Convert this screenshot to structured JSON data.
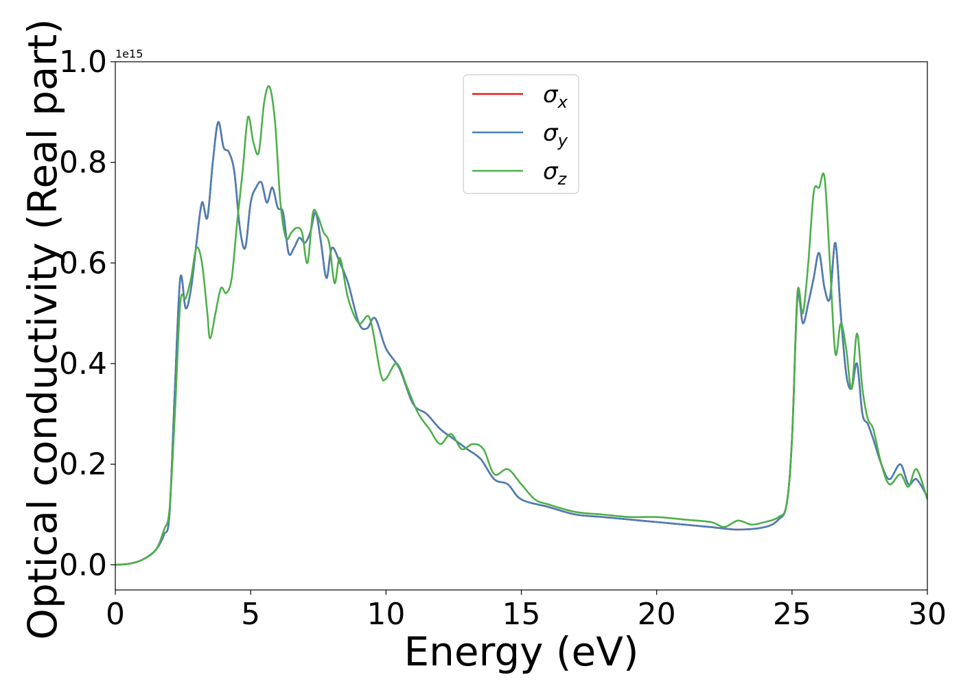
{
  "chart_data": {
    "type": "line",
    "title": "",
    "xlabel": "Energy (eV)",
    "ylabel": "Optical conductivity (Real part)",
    "y_offset_label": "1e15",
    "xlim": [
      0,
      30
    ],
    "ylim": [
      -0.05,
      1.0
    ],
    "xticks": [
      0,
      5,
      10,
      15,
      20,
      25,
      30
    ],
    "yticks": [
      0.0,
      0.2,
      0.4,
      0.6,
      0.8,
      1.0
    ],
    "xtick_labels": [
      "0",
      "5",
      "10",
      "15",
      "20",
      "25",
      "30"
    ],
    "ytick_labels": [
      "0.0",
      "0.2",
      "0.4",
      "0.6",
      "0.8",
      "1.0"
    ],
    "grid": false,
    "legend_position": "top-center",
    "series": [
      {
        "name": "σx",
        "symbol": "σ",
        "subscript": "x",
        "color": "#e41a1c",
        "x": [
          0,
          0.5,
          1.0,
          1.5,
          1.8,
          2.0,
          2.2,
          2.4,
          2.6,
          2.8,
          3.0,
          3.2,
          3.4,
          3.6,
          3.8,
          4.0,
          4.2,
          4.4,
          4.6,
          4.8,
          5.0,
          5.2,
          5.4,
          5.6,
          5.8,
          6.0,
          6.2,
          6.4,
          6.6,
          6.8,
          7.0,
          7.2,
          7.4,
          7.6,
          7.8,
          8.0,
          8.3,
          8.6,
          9.0,
          9.3,
          9.6,
          10.0,
          10.5,
          11.0,
          11.5,
          12.0,
          12.5,
          13.0,
          13.5,
          14.0,
          14.5,
          15.0,
          16.0,
          17.0,
          18.0,
          19.0,
          20.0,
          21.0,
          22.0,
          23.0,
          24.0,
          24.5,
          24.8,
          25.0,
          25.2,
          25.4,
          25.6,
          25.8,
          26.0,
          26.2,
          26.4,
          26.6,
          26.8,
          27.0,
          27.2,
          27.4,
          27.6,
          27.8,
          28.0,
          28.3,
          28.6,
          29.0,
          29.3,
          29.6,
          30.0
        ],
        "y": [
          0.0,
          0.002,
          0.01,
          0.03,
          0.06,
          0.1,
          0.35,
          0.57,
          0.51,
          0.55,
          0.64,
          0.72,
          0.69,
          0.8,
          0.88,
          0.83,
          0.82,
          0.78,
          0.67,
          0.63,
          0.72,
          0.75,
          0.76,
          0.72,
          0.75,
          0.71,
          0.7,
          0.62,
          0.63,
          0.65,
          0.64,
          0.66,
          0.7,
          0.64,
          0.57,
          0.63,
          0.6,
          0.56,
          0.48,
          0.47,
          0.49,
          0.43,
          0.39,
          0.32,
          0.3,
          0.27,
          0.25,
          0.23,
          0.21,
          0.17,
          0.16,
          0.13,
          0.115,
          0.1,
          0.095,
          0.09,
          0.085,
          0.08,
          0.075,
          0.07,
          0.075,
          0.09,
          0.12,
          0.25,
          0.53,
          0.48,
          0.52,
          0.57,
          0.62,
          0.55,
          0.53,
          0.64,
          0.5,
          0.38,
          0.35,
          0.4,
          0.3,
          0.28,
          0.25,
          0.2,
          0.17,
          0.2,
          0.16,
          0.17,
          0.135
        ]
      },
      {
        "name": "σy",
        "symbol": "σ",
        "subscript": "y",
        "color": "#4a7fb5",
        "x": [
          0,
          0.5,
          1.0,
          1.5,
          1.8,
          2.0,
          2.2,
          2.4,
          2.6,
          2.8,
          3.0,
          3.2,
          3.4,
          3.6,
          3.8,
          4.0,
          4.2,
          4.4,
          4.6,
          4.8,
          5.0,
          5.2,
          5.4,
          5.6,
          5.8,
          6.0,
          6.2,
          6.4,
          6.6,
          6.8,
          7.0,
          7.2,
          7.4,
          7.6,
          7.8,
          8.0,
          8.3,
          8.6,
          9.0,
          9.3,
          9.6,
          10.0,
          10.5,
          11.0,
          11.5,
          12.0,
          12.5,
          13.0,
          13.5,
          14.0,
          14.5,
          15.0,
          16.0,
          17.0,
          18.0,
          19.0,
          20.0,
          21.0,
          22.0,
          23.0,
          24.0,
          24.5,
          24.8,
          25.0,
          25.2,
          25.4,
          25.6,
          25.8,
          26.0,
          26.2,
          26.4,
          26.6,
          26.8,
          27.0,
          27.2,
          27.4,
          27.6,
          27.8,
          28.0,
          28.3,
          28.6,
          29.0,
          29.3,
          29.6,
          30.0
        ],
        "y": [
          0.0,
          0.002,
          0.01,
          0.03,
          0.06,
          0.1,
          0.35,
          0.57,
          0.51,
          0.55,
          0.64,
          0.72,
          0.69,
          0.8,
          0.88,
          0.83,
          0.82,
          0.78,
          0.67,
          0.63,
          0.72,
          0.75,
          0.76,
          0.72,
          0.75,
          0.71,
          0.7,
          0.62,
          0.63,
          0.65,
          0.64,
          0.66,
          0.7,
          0.64,
          0.57,
          0.63,
          0.6,
          0.56,
          0.48,
          0.47,
          0.49,
          0.43,
          0.39,
          0.32,
          0.3,
          0.27,
          0.25,
          0.23,
          0.21,
          0.17,
          0.16,
          0.13,
          0.115,
          0.1,
          0.095,
          0.09,
          0.085,
          0.08,
          0.075,
          0.07,
          0.075,
          0.09,
          0.12,
          0.25,
          0.53,
          0.48,
          0.52,
          0.57,
          0.62,
          0.55,
          0.53,
          0.64,
          0.5,
          0.38,
          0.35,
          0.4,
          0.3,
          0.28,
          0.25,
          0.2,
          0.17,
          0.2,
          0.16,
          0.17,
          0.135
        ]
      },
      {
        "name": "σz",
        "symbol": "σ",
        "subscript": "z",
        "color": "#4daf4a",
        "x": [
          0,
          0.5,
          1.0,
          1.5,
          1.8,
          2.0,
          2.2,
          2.4,
          2.6,
          2.8,
          3.0,
          3.2,
          3.4,
          3.5,
          3.7,
          3.9,
          4.1,
          4.3,
          4.5,
          4.7,
          4.9,
          5.1,
          5.3,
          5.5,
          5.7,
          5.9,
          6.1,
          6.3,
          6.5,
          6.7,
          6.9,
          7.1,
          7.3,
          7.5,
          7.7,
          7.9,
          8.1,
          8.3,
          8.6,
          9.0,
          9.4,
          9.8,
          10.0,
          10.4,
          10.8,
          11.2,
          11.6,
          12.0,
          12.4,
          12.8,
          13.2,
          13.6,
          14.0,
          14.5,
          15.0,
          15.5,
          16.0,
          17.0,
          18.0,
          19.0,
          20.0,
          21.0,
          22.0,
          22.5,
          23.0,
          23.5,
          24.0,
          24.5,
          24.8,
          25.0,
          25.2,
          25.4,
          25.6,
          25.8,
          26.0,
          26.2,
          26.4,
          26.6,
          26.8,
          27.0,
          27.2,
          27.4,
          27.6,
          27.8,
          28.0,
          28.3,
          28.6,
          29.0,
          29.3,
          29.6,
          30.0
        ],
        "y": [
          0.0,
          0.002,
          0.01,
          0.03,
          0.07,
          0.11,
          0.3,
          0.52,
          0.53,
          0.57,
          0.63,
          0.6,
          0.5,
          0.45,
          0.5,
          0.55,
          0.54,
          0.57,
          0.68,
          0.78,
          0.89,
          0.84,
          0.82,
          0.92,
          0.95,
          0.88,
          0.72,
          0.65,
          0.66,
          0.67,
          0.66,
          0.6,
          0.7,
          0.69,
          0.66,
          0.64,
          0.56,
          0.61,
          0.53,
          0.48,
          0.49,
          0.38,
          0.37,
          0.4,
          0.35,
          0.3,
          0.27,
          0.24,
          0.26,
          0.23,
          0.24,
          0.23,
          0.18,
          0.19,
          0.16,
          0.13,
          0.12,
          0.105,
          0.1,
          0.095,
          0.095,
          0.09,
          0.085,
          0.075,
          0.088,
          0.08,
          0.085,
          0.095,
          0.12,
          0.25,
          0.54,
          0.5,
          0.6,
          0.74,
          0.75,
          0.77,
          0.6,
          0.42,
          0.48,
          0.43,
          0.35,
          0.46,
          0.35,
          0.29,
          0.27,
          0.2,
          0.16,
          0.18,
          0.155,
          0.19,
          0.13
        ]
      }
    ]
  }
}
